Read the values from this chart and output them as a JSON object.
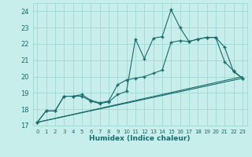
{
  "xlabel": "Humidex (Indice chaleur)",
  "xlim": [
    -0.5,
    23.5
  ],
  "ylim": [
    17,
    24.5
  ],
  "yticks": [
    17,
    18,
    19,
    20,
    21,
    22,
    23,
    24
  ],
  "xticks": [
    0,
    1,
    2,
    3,
    4,
    5,
    6,
    7,
    8,
    9,
    10,
    11,
    12,
    13,
    14,
    15,
    16,
    17,
    18,
    19,
    20,
    21,
    22,
    23
  ],
  "bg_color": "#c8eeec",
  "grid_color": "#a0d8d4",
  "line_color": "#1a6b6b",
  "line1_y": [
    17.2,
    17.9,
    17.9,
    18.8,
    18.8,
    18.8,
    18.5,
    18.35,
    18.45,
    18.9,
    19.1,
    22.3,
    21.1,
    22.35,
    22.45,
    24.1,
    23.0,
    22.15,
    22.3,
    22.4,
    22.4,
    20.9,
    20.35,
    19.9
  ],
  "line2_y": [
    17.2,
    17.9,
    17.9,
    18.8,
    18.8,
    18.9,
    18.55,
    18.4,
    18.5,
    19.5,
    19.8,
    19.9,
    20.0,
    20.2,
    20.4,
    22.1,
    22.2,
    22.15,
    22.3,
    22.4,
    22.4,
    21.8,
    20.3,
    19.9
  ],
  "reg1_start": 17.2,
  "reg1_end": 19.9,
  "reg2_start": 17.2,
  "reg2_end": 20.0,
  "reg3_start": 17.2,
  "reg3_end": 19.95
}
